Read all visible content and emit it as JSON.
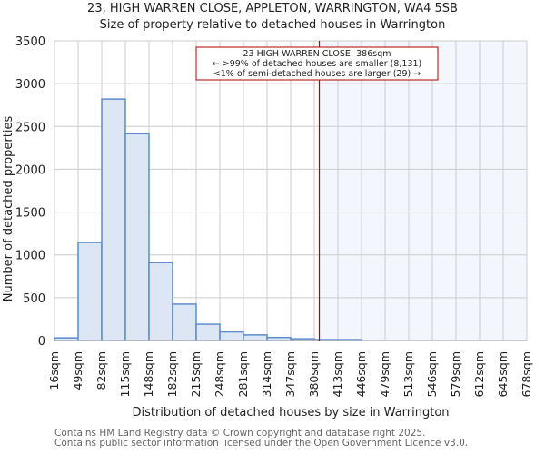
{
  "header": {
    "title": "23, HIGH WARREN CLOSE, APPLETON, WARRINGTON, WA4 5SB",
    "subtitle": "Size of property relative to detached houses in Warrington"
  },
  "annotation": {
    "line1": "23 HIGH WARREN CLOSE: 386sqm",
    "line2": "← >99% of detached houses are smaller (8,131)",
    "line3": "<1% of semi-detached houses are larger (29) →"
  },
  "footer": {
    "line1": "Contains HM Land Registry data © Crown copyright and database right 2025.",
    "line2": "Contains public sector information licensed under the Open Government Licence v3.0."
  },
  "colors": {
    "bar_fill": "#dce6f4",
    "bar_edge": "#5b8ccc",
    "marker": "#b00000",
    "highlight_region": "#f3f6fd",
    "grid": "#cccccc"
  },
  "chart_data": {
    "type": "bar",
    "title": "23, HIGH WARREN CLOSE, APPLETON, WARRINGTON, WA4 5SB",
    "subtitle": "Size of property relative to detached houses in Warrington",
    "xlabel": "Distribution of detached houses by size in Warrington",
    "ylabel": "Number of detached properties",
    "ylim": [
      0,
      3500
    ],
    "yticks": [
      0,
      500,
      1000,
      1500,
      2000,
      2500,
      3000,
      3500
    ],
    "categories": [
      "16sqm",
      "49sqm",
      "82sqm",
      "115sqm",
      "148sqm",
      "182sqm",
      "215sqm",
      "248sqm",
      "281sqm",
      "314sqm",
      "347sqm",
      "380sqm",
      "413sqm",
      "446sqm",
      "479sqm",
      "513sqm",
      "546sqm",
      "579sqm",
      "612sqm",
      "645sqm",
      "678sqm"
    ],
    "values": [
      30,
      1145,
      2820,
      2415,
      910,
      425,
      190,
      100,
      65,
      35,
      20,
      10,
      10,
      0,
      0,
      0,
      0,
      0,
      0,
      0
    ],
    "marker": {
      "value": 386,
      "label": "23 HIGH WARREN CLOSE: 386sqm"
    },
    "grid": true
  }
}
